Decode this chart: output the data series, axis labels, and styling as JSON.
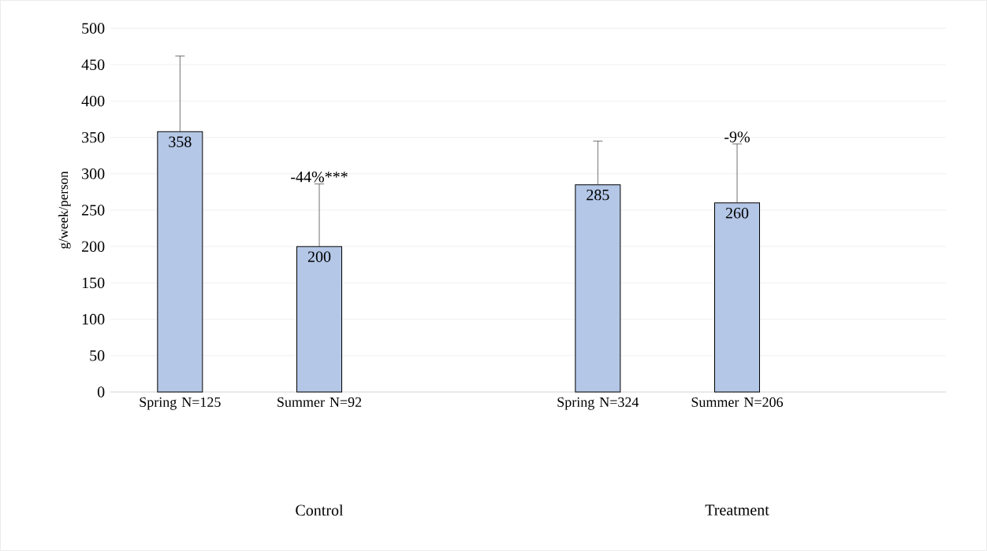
{
  "chart_data": {
    "type": "bar",
    "ylabel": "g/week/person",
    "categories": [
      "Spring N=125",
      "Summer N=92",
      null,
      "Spring N=324",
      "Summer N=206",
      null
    ],
    "values": [
      358,
      200,
      null,
      285,
      260,
      null
    ],
    "errors": [
      [
        358,
        462
      ],
      [
        200,
        286
      ],
      null,
      [
        285,
        345
      ],
      [
        260,
        341
      ],
      null
    ],
    "color": "#b4c7e7",
    "ylim": [
      0,
      500
    ],
    "yticks": [
      0,
      50,
      100,
      150,
      200,
      250,
      300,
      350,
      400,
      450,
      500
    ],
    "grid": "y",
    "data_labels": true,
    "annotations": [
      {
        "text": "-44%***",
        "x": "Summer N=92",
        "y": 286
      },
      {
        "text": "-9%",
        "x": "Summer N=206",
        "y": 341
      },
      "Control",
      "Treatment"
    ]
  }
}
